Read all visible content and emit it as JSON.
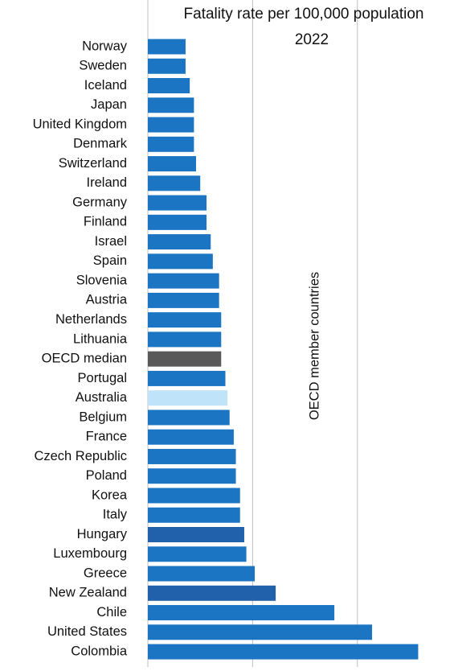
{
  "chart_data": {
    "type": "barh",
    "title": "Fatality rate per 100,000 population",
    "subtitle": "2022",
    "annotation": "OECD member countries",
    "categories": [
      "Norway",
      "Sweden",
      "Iceland",
      "Japan",
      "United Kingdom",
      "Denmark",
      "Switzerland",
      "Ireland",
      "Germany",
      "Finland",
      "Israel",
      "Spain",
      "Slovenia",
      "Austria",
      "Netherlands",
      "Lithuania",
      "OECD median",
      "Portugal",
      "Australia",
      "Belgium",
      "France",
      "Czech Republic",
      "Poland",
      "Korea",
      "Italy",
      "Hungary",
      "Luxembourg",
      "Greece",
      "New Zealand",
      "Chile",
      "United States",
      "Colombia"
    ],
    "values": [
      1.8,
      1.8,
      2.0,
      2.2,
      2.2,
      2.2,
      2.3,
      2.5,
      2.8,
      2.8,
      3.0,
      3.1,
      3.4,
      3.4,
      3.5,
      3.5,
      3.5,
      3.7,
      3.8,
      3.9,
      4.1,
      4.2,
      4.2,
      4.4,
      4.4,
      4.6,
      4.7,
      5.1,
      6.1,
      8.9,
      10.7,
      12.9
    ],
    "colors": [
      "#1b75c3",
      "#1b75c3",
      "#1b75c3",
      "#1b75c3",
      "#1b75c3",
      "#1b75c3",
      "#1b75c3",
      "#1b75c3",
      "#1b75c3",
      "#1b75c3",
      "#1b75c3",
      "#1b75c3",
      "#1b75c3",
      "#1b75c3",
      "#1b75c3",
      "#1b75c3",
      "#595959",
      "#1b75c3",
      "#bfe3f8",
      "#1b75c3",
      "#1b75c3",
      "#1b75c3",
      "#1b75c3",
      "#1b75c3",
      "#1b75c3",
      "#2160aa",
      "#1b75c3",
      "#1b75c3",
      "#2160aa",
      "#1b75c3",
      "#1b75c3",
      "#1b75c3"
    ],
    "xlim": [
      0,
      14.8
    ],
    "xticks": [
      0,
      5,
      10
    ],
    "grid": true
  }
}
